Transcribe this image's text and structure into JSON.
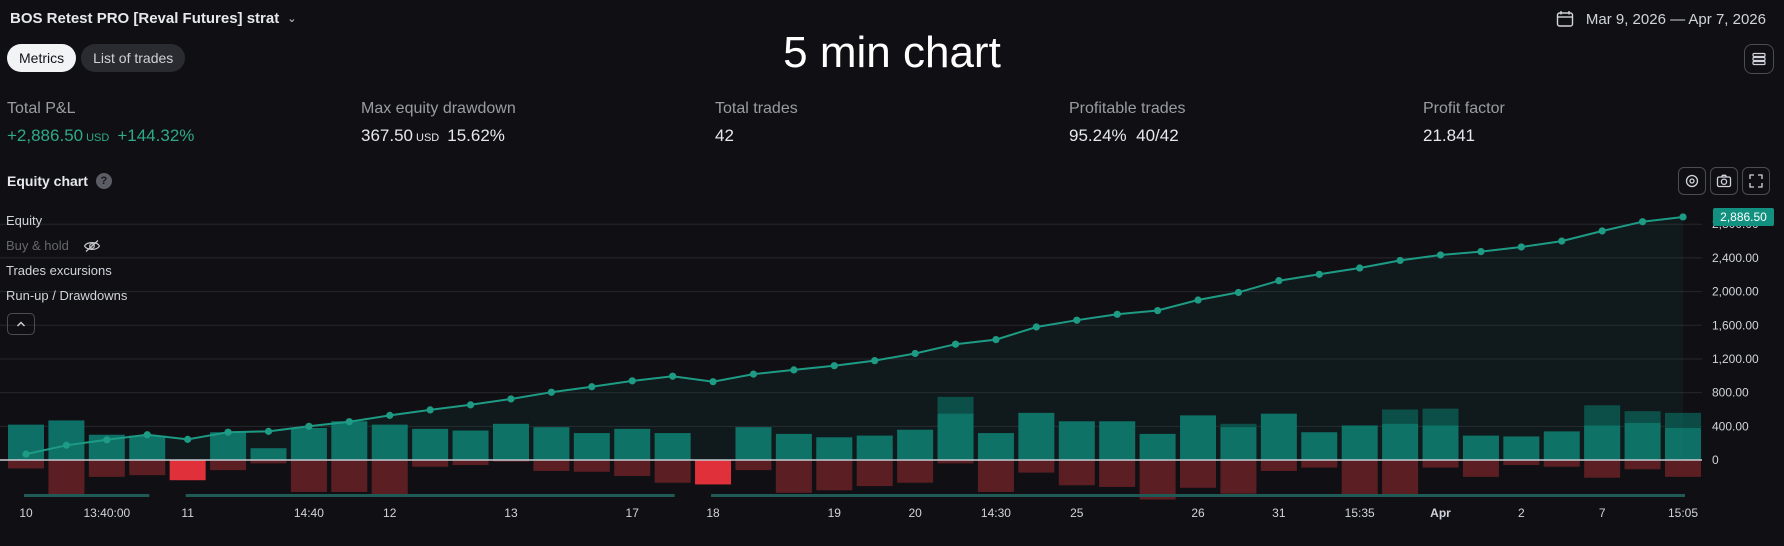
{
  "header": {
    "strategy_name": "BOS Retest PRO [Reval Futures] strat",
    "chart_title": "5 min chart",
    "date_range": "Mar 9, 2026 — Apr 7, 2026"
  },
  "tabs": [
    {
      "label": "Metrics",
      "active": true
    },
    {
      "label": "List of trades",
      "active": false
    }
  ],
  "metrics": {
    "total_pnl": {
      "label": "Total P&L",
      "value": "+2,886.50",
      "unit": "USD",
      "pct": "+144.32%"
    },
    "max_drawdown": {
      "label": "Max equity drawdown",
      "value": "367.50",
      "unit": "USD",
      "pct": "15.62%"
    },
    "total_trades": {
      "label": "Total trades",
      "value": "42"
    },
    "profitable_trades": {
      "label": "Profitable trades",
      "pct": "95.24%",
      "ratio": "40/42"
    },
    "profit_factor": {
      "label": "Profit factor",
      "value": "21.841"
    }
  },
  "equity_chart": {
    "title": "Equity chart",
    "help_icon": "question-icon",
    "legend": [
      "Equity",
      "Buy & hold",
      "Trades excursions",
      "Run-up / Drawdowns"
    ],
    "last_value_tag": "2,886.50",
    "icons": [
      "settings-icon",
      "camera-icon",
      "expand-icon",
      "eye-off-icon",
      "chevron-up-icon",
      "calendar-icon",
      "layers-icon"
    ]
  },
  "colors": {
    "equity": "#1e9b84",
    "runup": "#0d6f66",
    "runup_dark": "#0b4a45",
    "drawdown": "#5b1f23",
    "loss": "#e0313a",
    "background": "#101014"
  },
  "chart_data": {
    "type": "line",
    "ylim": [
      -400,
      2886.5
    ],
    "yticks": [
      "0",
      "400.00",
      "800.00",
      "1,200.00",
      "1,600.00",
      "2,000.00",
      "2,400.00",
      "2,800.00"
    ],
    "ytick_values": [
      0,
      400,
      800,
      1200,
      1600,
      2000,
      2400,
      2800
    ],
    "xtick_labels": [
      "10",
      "13:40:00",
      "11",
      "14:40",
      "12",
      "13",
      "17",
      "18",
      "19",
      "20",
      "14:30",
      "25",
      "26",
      "31",
      "15:35",
      "Apr",
      "2",
      "7",
      "15:05"
    ],
    "xtick_trade_index": [
      0,
      2,
      4,
      7,
      9,
      12,
      15,
      17,
      20,
      22,
      24,
      26,
      29,
      31,
      33,
      35,
      37,
      39,
      41
    ],
    "series": [
      {
        "type": "line",
        "values": [
          70,
          175,
          240,
          300,
          245,
          330,
          340,
          400,
          455,
          530,
          595,
          655,
          725,
          805,
          870,
          940,
          995,
          930,
          1020,
          1070,
          1120,
          1180,
          1265,
          1375,
          1430,
          1580,
          1660,
          1730,
          1775,
          1900,
          1990,
          2130,
          2205,
          2280,
          2370,
          2435,
          2475,
          2530,
          2600,
          2720,
          2830,
          2886.5
        ]
      },
      {
        "type": "bar",
        "values": [
          420,
          470,
          300,
          290,
          0,
          330,
          140,
          380,
          460,
          420,
          370,
          350,
          430,
          390,
          320,
          370,
          320,
          0,
          390,
          310,
          270,
          290,
          360,
          550,
          320,
          560,
          460,
          460,
          310,
          530,
          390,
          550,
          330,
          410,
          430,
          410,
          290,
          280,
          340,
          410,
          440,
          380
        ]
      },
      {
        "type": "bar",
        "values": [
          0,
          0,
          0,
          0,
          0,
          0,
          0,
          0,
          0,
          0,
          0,
          0,
          0,
          0,
          0,
          0,
          0,
          0,
          0,
          200,
          180,
          200,
          0,
          750,
          0,
          0,
          0,
          0,
          0,
          0,
          430,
          0,
          0,
          0,
          600,
          610,
          0,
          0,
          0,
          650,
          580,
          560
        ]
      },
      {
        "type": "bar",
        "values": [
          -100,
          -440,
          -200,
          -180,
          -240,
          -120,
          -40,
          -380,
          -380,
          -440,
          -80,
          -60,
          -20,
          -130,
          -140,
          -190,
          -270,
          -290,
          -120,
          -390,
          -360,
          -310,
          -270,
          -40,
          -380,
          -150,
          -300,
          -320,
          -470,
          -330,
          -400,
          -130,
          -90,
          -410,
          -440,
          -90,
          -200,
          -60,
          -80,
          -210,
          -110,
          -200
        ]
      }
    ]
  }
}
